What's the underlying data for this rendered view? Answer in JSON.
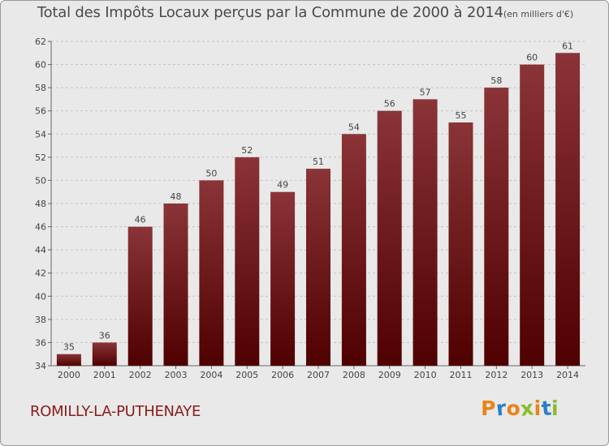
{
  "chart_data": {
    "type": "bar",
    "title": "Total des Impôts Locaux perçus par la Commune de 2000 à 2014",
    "subtitle": "(en milliers d'€)",
    "categories": [
      "2000",
      "2001",
      "2002",
      "2003",
      "2004",
      "2005",
      "2006",
      "2007",
      "2008",
      "2009",
      "2010",
      "2011",
      "2012",
      "2013",
      "2014"
    ],
    "values": [
      35,
      36,
      46,
      48,
      50,
      52,
      49,
      51,
      54,
      56,
      57,
      55,
      58,
      60,
      61
    ],
    "xlabel": "",
    "ylabel": "",
    "ylim": [
      34,
      62
    ],
    "yticks": [
      34,
      36,
      38,
      40,
      42,
      44,
      46,
      48,
      50,
      52,
      54,
      56,
      58,
      60,
      62
    ],
    "grid": "horizontal-dashed"
  },
  "footer": {
    "commune_name": "ROMILLY-LA-PUTHENAYE",
    "logo_text": "Proxiti"
  },
  "colors": {
    "bar_top": "#8a3438",
    "bar_bottom": "#4f0000",
    "plot_background": "#e9e9e9",
    "commune_text": "#8b1c1c",
    "logo_letters": [
      "#e8841a",
      "#2a7fc8",
      "#e8841a",
      "#8cbc2a",
      "#e8841a",
      "#2a7fc8",
      "#8cbc2a"
    ]
  }
}
